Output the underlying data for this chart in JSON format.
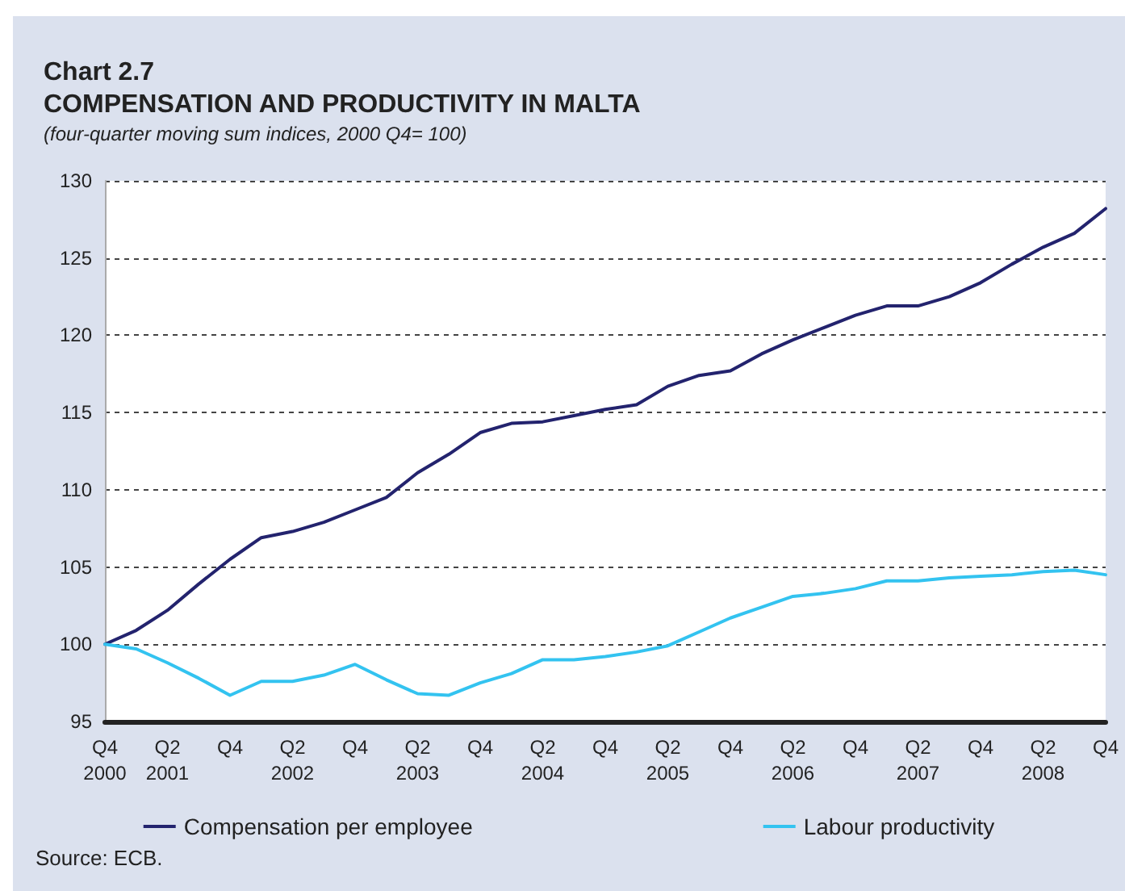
{
  "chart_data": {
    "type": "line",
    "title": "Chart 2.7\nCOMPENSATION AND PRODUCTIVITY IN MALTA",
    "subtitle": "(four-quarter moving sum indices, 2000 Q4= 100)",
    "categories": [
      "Q4\n2000",
      null,
      "Q2\n2001",
      null,
      "Q4",
      null,
      "Q2\n2002",
      null,
      "Q4",
      null,
      "Q2\n2003",
      null,
      "Q4",
      null,
      "Q2\n2004",
      null,
      "Q4",
      null,
      "Q2\n2005",
      null,
      "Q4",
      null,
      "Q2\n2006",
      null,
      "Q4",
      null,
      "Q2\n2007",
      null,
      "Q4",
      null,
      "Q2\n2008",
      null,
      "Q4"
    ],
    "series": [
      {
        "name": "Compensation per employee",
        "color": "#23236e",
        "values": [
          100,
          100.9,
          102.2,
          103.9,
          105.5,
          106.9,
          107.3,
          107.9,
          108.7,
          109.5,
          111.1,
          112.3,
          113.7,
          114.3,
          114.4,
          114.8,
          115.2,
          115.5,
          116.7,
          117.4,
          117.7,
          118.8,
          119.7,
          120.5,
          121.3,
          121.9,
          121.9,
          122.5,
          123.4,
          124.6,
          125.7,
          126.6,
          128.2
        ]
      },
      {
        "name": "Labour productivity",
        "color": "#33c3f0",
        "values": [
          100,
          99.7,
          98.8,
          97.8,
          96.7,
          97.6,
          97.6,
          98.0,
          98.7,
          97.7,
          96.8,
          96.7,
          97.5,
          98.1,
          99.0,
          99.0,
          99.2,
          99.5,
          99.9,
          100.8,
          101.7,
          102.4,
          103.1,
          103.3,
          103.6,
          104.1,
          104.1,
          104.3,
          104.4,
          104.5,
          104.7,
          104.8,
          104.5
        ]
      }
    ],
    "ylim": [
      95,
      130
    ],
    "yticks": [
      95,
      100,
      105,
      110,
      115,
      120,
      125,
      130
    ],
    "grid": "y",
    "legend": "bottom",
    "marker": "none",
    "line_style": "solid",
    "annotations": [
      "Source: ECB."
    ]
  }
}
